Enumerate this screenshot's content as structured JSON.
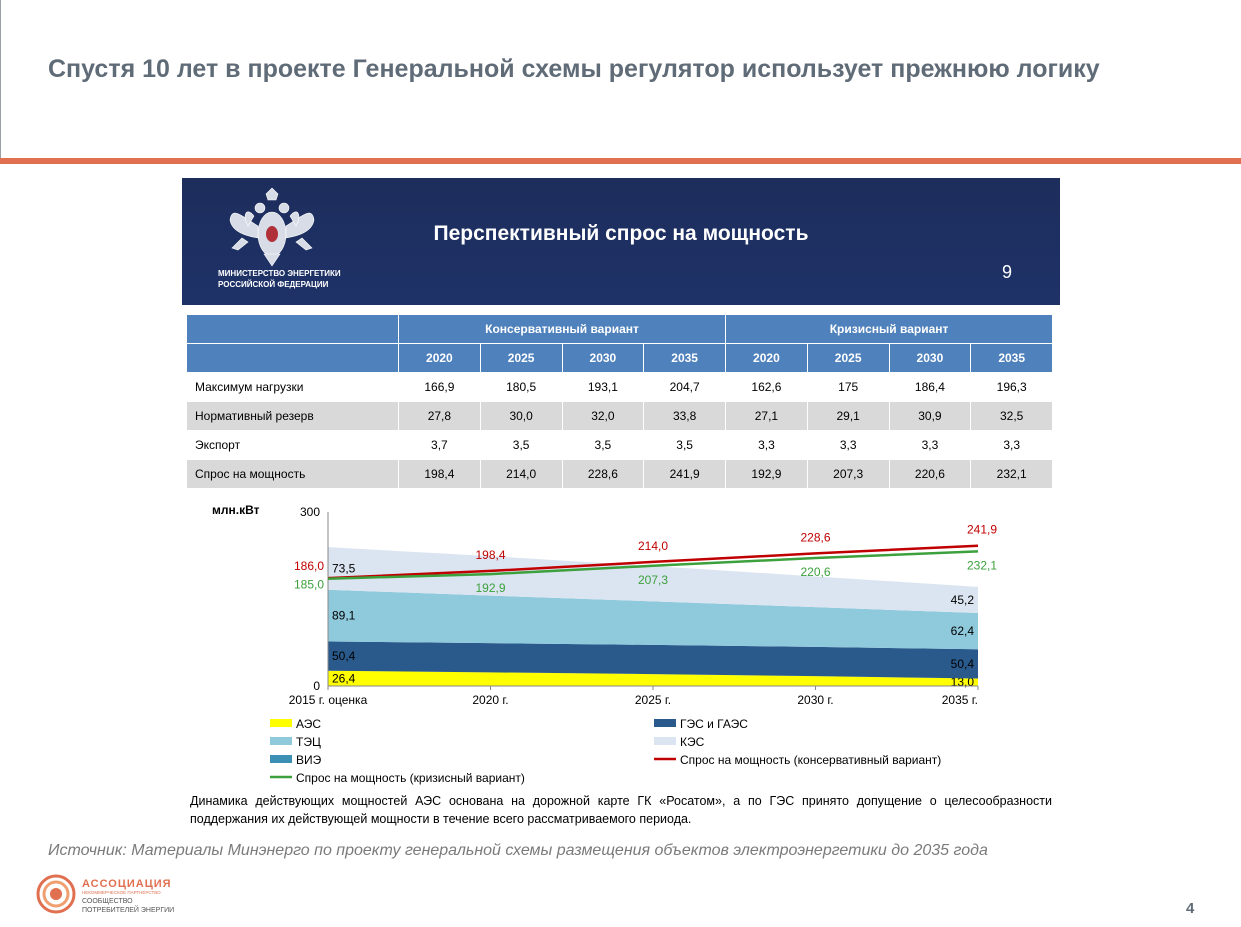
{
  "slide": {
    "title": "Спустя  10 лет в проекте Генеральной схемы регулятор использует прежнюю логику",
    "source": "Источник: Материалы Минэнерго по проекту генеральной схемы размещения объектов электроэнергетики до 2035 года",
    "page_number": "4",
    "accent_color": "#e07050"
  },
  "panel": {
    "ministry_name": "МИНИСТЕРСТВО ЭНЕРГЕТИКИ\nРОССИЙСКОЙ ФЕДЕРАЦИИ",
    "title": "Перспективный спрос на мощность",
    "inner_page_number": "9",
    "header_color": "#1e3268"
  },
  "table": {
    "groups": [
      "Консервативный вариант",
      "Кризисный вариант"
    ],
    "years": [
      "2020",
      "2025",
      "2030",
      "2035",
      "2020",
      "2025",
      "2030",
      "2035"
    ],
    "rows": [
      {
        "label": "Максимум нагрузки",
        "values": [
          "166,9",
          "180,5",
          "193,1",
          "204,7",
          "162,6",
          "175",
          "186,4",
          "196,3"
        ]
      },
      {
        "label": "Нормативный резерв",
        "values": [
          "27,8",
          "30,0",
          "32,0",
          "33,8",
          "27,1",
          "29,1",
          "30,9",
          "32,5"
        ]
      },
      {
        "label": "Экспорт",
        "values": [
          "3,7",
          "3,5",
          "3,5",
          "3,5",
          "3,3",
          "3,3",
          "3,3",
          "3,3"
        ]
      },
      {
        "label": "Спрос на мощность",
        "values": [
          "198,4",
          "214,0",
          "228,6",
          "241,9",
          "192,9",
          "207,3",
          "220,6",
          "232,1"
        ]
      }
    ]
  },
  "chart_data": {
    "type": "area",
    "ylabel": "млн.кВт",
    "ylim": [
      0,
      300
    ],
    "yticks": [
      "0",
      "300"
    ],
    "categories": [
      "2015 г. оценка",
      "2020 г.",
      "2025 г.",
      "2030 г.",
      "2035 г."
    ],
    "stacked_series": [
      {
        "name": "АЭС",
        "color": "#ffff00",
        "values": [
          26.4,
          23.5,
          20.5,
          17.0,
          13.0
        ],
        "labels": {
          "0": "26,4",
          "4": "13,0"
        }
      },
      {
        "name": "ГЭС и ГАЭС",
        "color": "#2a5a8c",
        "values": [
          50.4,
          50.4,
          50.4,
          50.4,
          50.4
        ],
        "labels": {
          "0": "50,4",
          "4": "50,4"
        }
      },
      {
        "name": "ТЭЦ",
        "color": "#8fc9dc",
        "values": [
          89.1,
          82.0,
          75.0,
          68.5,
          62.4
        ],
        "labels": {
          "0": "89,1",
          "4": "62,4"
        }
      },
      {
        "name": "КЭС",
        "color": "#dbe5f1",
        "values": [
          73.5,
          68.0,
          61.0,
          53.0,
          45.2
        ],
        "labels": {
          "0": "73,5",
          "4": "45,2"
        }
      }
    ],
    "line_series": [
      {
        "name": "Спрос на мощность (консервативный вариант)",
        "color": "#c00000",
        "values": [
          186.0,
          198.4,
          214.0,
          228.6,
          241.9
        ],
        "labels": [
          "186,0",
          "198,4",
          "214,0",
          "228,6",
          "241,9"
        ]
      },
      {
        "name": "Спрос на мощность (кризисный вариант)",
        "color": "#3ca03c",
        "values": [
          185.0,
          192.9,
          207.3,
          220.6,
          232.1
        ],
        "labels": [
          "185,0",
          "192,9",
          "207,3",
          "220,6",
          "232,1"
        ]
      }
    ],
    "legend": [
      {
        "name": "АЭС",
        "color": "#ffff00",
        "kind": "box"
      },
      {
        "name": "ГЭС и ГАЭС",
        "color": "#2a5a8c",
        "kind": "box"
      },
      {
        "name": "ТЭЦ",
        "color": "#8fc9dc",
        "kind": "box"
      },
      {
        "name": "КЭС",
        "color": "#dbe5f1",
        "kind": "box"
      },
      {
        "name": "ВИЭ",
        "color": "#3b8fb5",
        "kind": "box"
      },
      {
        "name": "Спрос на мощность (консервативный вариант)",
        "color": "#c00000",
        "kind": "line"
      },
      {
        "name": "Спрос на мощность (кризисный вариант)",
        "color": "#3ca03c",
        "kind": "line"
      }
    ],
    "legend_placement": "bottom"
  },
  "note": "Динамика действующих мощностей АЭС основана на дорожной карте ГК «Росатом», а по ГЭС принято допущение о целесообразности поддержания их действующей мощности в течение всего рассматриваемого периода.",
  "association": {
    "name": "АССОЦИАЦИЯ",
    "subtitle": "НЕКОММЕРЧЕСКОЕ ПАРТНЕРСТВО",
    "description": "СООБЩЕСТВО\nПОТРЕБИТЕЛЕЙ ЭНЕРГИИ"
  }
}
